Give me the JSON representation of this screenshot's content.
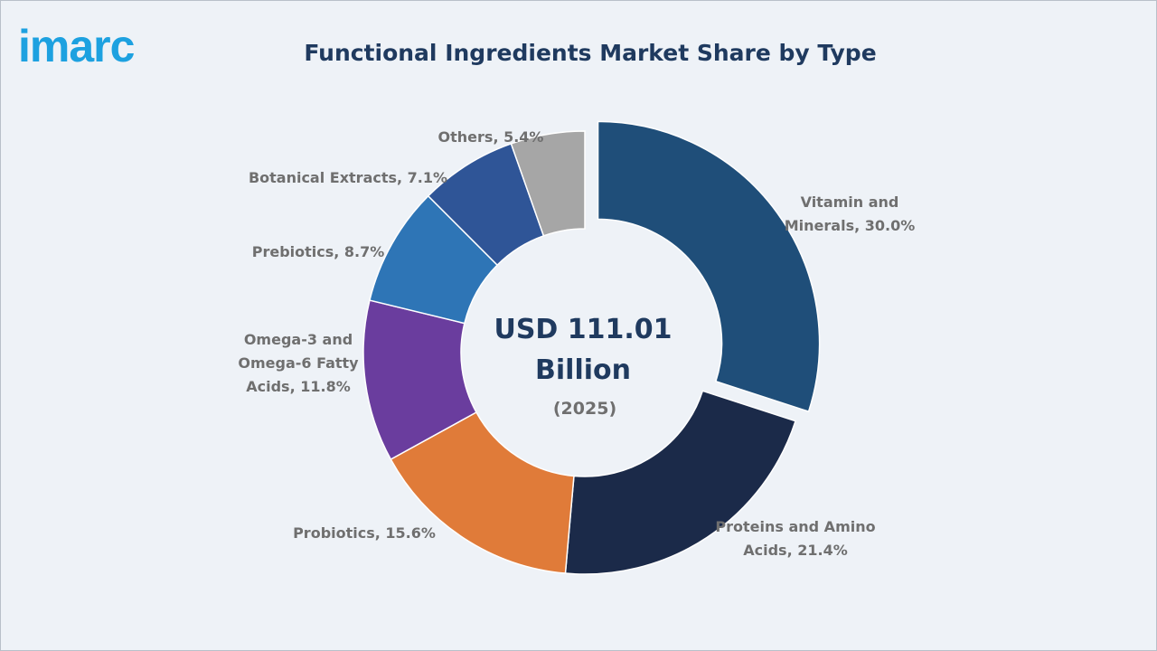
{
  "brand": {
    "logo_text": "imarc"
  },
  "chart_data": {
    "type": "pie",
    "subtype": "donut",
    "title": "Functional Ingredients Market Share by Type",
    "center_value": "USD 111.01",
    "center_value_2": "Billion",
    "center_sub": "(2025)",
    "unit": "%",
    "slices": [
      {
        "name": "Vitamin and Minerals",
        "value": 30.0,
        "color": "#1f4e79",
        "label_lines": [
          "Vitamin and",
          "Minerals, 30.0%"
        ],
        "exploded": true
      },
      {
        "name": "Proteins and Amino Acids",
        "value": 21.4,
        "color": "#1b2a49",
        "label_lines": [
          "Proteins and Amino",
          "Acids, 21.4%"
        ]
      },
      {
        "name": "Probiotics",
        "value": 15.6,
        "color": "#e07b39",
        "label_lines": [
          "Probiotics, 15.6%"
        ]
      },
      {
        "name": "Omega-3 and Omega-6 Fatty Acids",
        "value": 11.8,
        "color": "#6a3d9e",
        "label_lines": [
          "Omega-3 and",
          "Omega-6 Fatty",
          "Acids, 11.8%"
        ]
      },
      {
        "name": "Prebiotics",
        "value": 8.7,
        "color": "#2e75b6",
        "label_lines": [
          "Prebiotics, 8.7%"
        ]
      },
      {
        "name": "Botanical Extracts",
        "value": 7.1,
        "color": "#2f5597",
        "label_lines": [
          "Botanical Extracts, 7.1%"
        ]
      },
      {
        "name": "Others",
        "value": 5.4,
        "color": "#a6a6a6",
        "label_lines": [
          "Others, 5.4%"
        ]
      }
    ]
  }
}
